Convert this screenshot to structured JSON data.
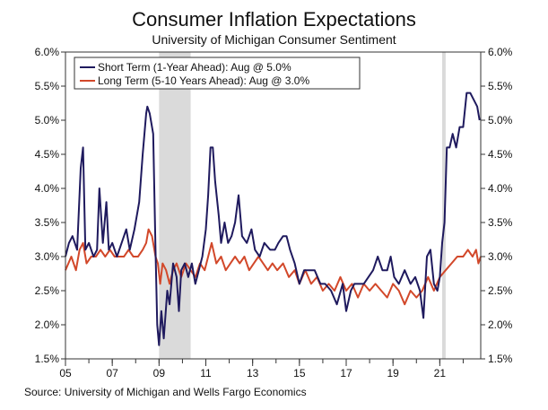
{
  "chart_data": {
    "type": "line",
    "title": "Consumer Inflation Expectations",
    "subtitle": "University of Michigan Consumer Sentiment",
    "source": "Source: University of Michigan and Wells Fargo Economics",
    "x_axis": {
      "range": [
        2005.0,
        2022.75
      ],
      "tick_values": [
        2005,
        2007,
        2009,
        2011,
        2013,
        2015,
        2017,
        2019,
        2021
      ],
      "tick_labels": [
        "05",
        "07",
        "09",
        "11",
        "13",
        "15",
        "17",
        "19",
        "21"
      ]
    },
    "y_axis": {
      "range": [
        1.5,
        6.0
      ],
      "tick_values": [
        1.5,
        2.0,
        2.5,
        3.0,
        3.5,
        4.0,
        4.5,
        5.0,
        5.5,
        6.0
      ],
      "tick_labels": [
        "1.5%",
        "2.0%",
        "2.5%",
        "3.0%",
        "3.5%",
        "4.0%",
        "4.5%",
        "5.0%",
        "5.5%",
        "6.0%"
      ],
      "mirrored_right": true
    },
    "grid": false,
    "legend_placement": "top-left",
    "recessions": [
      {
        "start": 2009.0,
        "end": 2010.35
      },
      {
        "start": 2021.1,
        "end": 2021.25
      }
    ],
    "colors": {
      "short": "#1f1a5e",
      "long": "#d2482a",
      "recession": "#dadada",
      "axis": "#333333"
    },
    "series": [
      {
        "name": "Short Term (1-Year Ahead): Aug @ 5.0%",
        "key": "short",
        "points": [
          [
            2005.0,
            3.0
          ],
          [
            2005.15,
            3.2
          ],
          [
            2005.3,
            3.3
          ],
          [
            2005.5,
            3.1
          ],
          [
            2005.65,
            4.3
          ],
          [
            2005.75,
            4.6
          ],
          [
            2005.85,
            3.1
          ],
          [
            2006.0,
            3.2
          ],
          [
            2006.2,
            3.0
          ],
          [
            2006.35,
            3.1
          ],
          [
            2006.45,
            4.0
          ],
          [
            2006.6,
            3.2
          ],
          [
            2006.75,
            3.8
          ],
          [
            2006.85,
            3.1
          ],
          [
            2007.0,
            3.2
          ],
          [
            2007.2,
            3.0
          ],
          [
            2007.4,
            3.2
          ],
          [
            2007.6,
            3.4
          ],
          [
            2007.75,
            3.1
          ],
          [
            2007.95,
            3.4
          ],
          [
            2008.15,
            3.8
          ],
          [
            2008.3,
            4.5
          ],
          [
            2008.45,
            5.1
          ],
          [
            2008.5,
            5.2
          ],
          [
            2008.6,
            5.1
          ],
          [
            2008.75,
            4.8
          ],
          [
            2008.85,
            3.1
          ],
          [
            2008.92,
            2.0
          ],
          [
            2009.0,
            1.7
          ],
          [
            2009.1,
            2.2
          ],
          [
            2009.2,
            1.8
          ],
          [
            2009.35,
            2.5
          ],
          [
            2009.45,
            2.3
          ],
          [
            2009.6,
            2.9
          ],
          [
            2009.75,
            2.7
          ],
          [
            2009.85,
            2.2
          ],
          [
            2009.95,
            2.8
          ],
          [
            2010.1,
            2.9
          ],
          [
            2010.25,
            2.7
          ],
          [
            2010.4,
            2.9
          ],
          [
            2010.55,
            2.6
          ],
          [
            2010.7,
            2.8
          ],
          [
            2010.85,
            3.0
          ],
          [
            2011.0,
            3.4
          ],
          [
            2011.1,
            3.9
          ],
          [
            2011.2,
            4.6
          ],
          [
            2011.3,
            4.6
          ],
          [
            2011.4,
            4.1
          ],
          [
            2011.55,
            3.6
          ],
          [
            2011.65,
            3.2
          ],
          [
            2011.8,
            3.5
          ],
          [
            2011.95,
            3.2
          ],
          [
            2012.1,
            3.3
          ],
          [
            2012.25,
            3.5
          ],
          [
            2012.4,
            3.9
          ],
          [
            2012.55,
            3.3
          ],
          [
            2012.75,
            3.2
          ],
          [
            2012.95,
            3.4
          ],
          [
            2013.1,
            3.1
          ],
          [
            2013.3,
            3.0
          ],
          [
            2013.5,
            3.2
          ],
          [
            2013.75,
            3.1
          ],
          [
            2013.95,
            3.1
          ],
          [
            2014.1,
            3.2
          ],
          [
            2014.3,
            3.3
          ],
          [
            2014.45,
            3.3
          ],
          [
            2014.6,
            3.1
          ],
          [
            2014.8,
            2.9
          ],
          [
            2015.0,
            2.6
          ],
          [
            2015.2,
            2.8
          ],
          [
            2015.45,
            2.8
          ],
          [
            2015.65,
            2.8
          ],
          [
            2015.9,
            2.6
          ],
          [
            2016.1,
            2.6
          ],
          [
            2016.35,
            2.5
          ],
          [
            2016.6,
            2.3
          ],
          [
            2016.85,
            2.6
          ],
          [
            2017.0,
            2.2
          ],
          [
            2017.2,
            2.5
          ],
          [
            2017.35,
            2.6
          ],
          [
            2017.55,
            2.6
          ],
          [
            2017.75,
            2.6
          ],
          [
            2017.95,
            2.7
          ],
          [
            2018.15,
            2.8
          ],
          [
            2018.35,
            3.0
          ],
          [
            2018.55,
            2.8
          ],
          [
            2018.75,
            2.8
          ],
          [
            2018.9,
            3.0
          ],
          [
            2019.05,
            2.7
          ],
          [
            2019.25,
            2.6
          ],
          [
            2019.5,
            2.8
          ],
          [
            2019.75,
            2.6
          ],
          [
            2019.95,
            2.7
          ],
          [
            2020.15,
            2.5
          ],
          [
            2020.3,
            2.1
          ],
          [
            2020.45,
            3.0
          ],
          [
            2020.6,
            3.1
          ],
          [
            2020.75,
            2.6
          ],
          [
            2020.9,
            2.5
          ],
          [
            2021.0,
            2.7
          ],
          [
            2021.1,
            3.2
          ],
          [
            2021.2,
            3.5
          ],
          [
            2021.3,
            4.6
          ],
          [
            2021.42,
            4.6
          ],
          [
            2021.55,
            4.8
          ],
          [
            2021.7,
            4.6
          ],
          [
            2021.85,
            4.9
          ],
          [
            2022.0,
            4.9
          ],
          [
            2022.15,
            5.4
          ],
          [
            2022.3,
            5.4
          ],
          [
            2022.45,
            5.3
          ],
          [
            2022.6,
            5.2
          ],
          [
            2022.7,
            5.0
          ]
        ]
      },
      {
        "name": "Long Term (5-10 Years Ahead): Aug @ 3.0%",
        "key": "long",
        "points": [
          [
            2005.0,
            2.8
          ],
          [
            2005.25,
            3.0
          ],
          [
            2005.45,
            2.8
          ],
          [
            2005.6,
            3.1
          ],
          [
            2005.75,
            3.2
          ],
          [
            2005.9,
            2.9
          ],
          [
            2006.1,
            3.0
          ],
          [
            2006.3,
            3.0
          ],
          [
            2006.5,
            3.1
          ],
          [
            2006.7,
            3.0
          ],
          [
            2006.9,
            3.1
          ],
          [
            2007.1,
            3.0
          ],
          [
            2007.3,
            3.0
          ],
          [
            2007.5,
            3.0
          ],
          [
            2007.7,
            3.1
          ],
          [
            2007.9,
            3.0
          ],
          [
            2008.1,
            3.0
          ],
          [
            2008.3,
            3.1
          ],
          [
            2008.45,
            3.2
          ],
          [
            2008.55,
            3.4
          ],
          [
            2008.7,
            3.3
          ],
          [
            2008.85,
            3.0
          ],
          [
            2008.95,
            2.9
          ],
          [
            2009.05,
            2.6
          ],
          [
            2009.15,
            2.9
          ],
          [
            2009.3,
            2.8
          ],
          [
            2009.45,
            2.6
          ],
          [
            2009.6,
            2.8
          ],
          [
            2009.75,
            2.9
          ],
          [
            2009.95,
            2.7
          ],
          [
            2010.15,
            2.9
          ],
          [
            2010.35,
            2.8
          ],
          [
            2010.55,
            2.7
          ],
          [
            2010.75,
            2.9
          ],
          [
            2010.95,
            2.8
          ],
          [
            2011.1,
            3.0
          ],
          [
            2011.25,
            3.2
          ],
          [
            2011.45,
            2.9
          ],
          [
            2011.65,
            3.0
          ],
          [
            2011.85,
            2.8
          ],
          [
            2012.05,
            2.9
          ],
          [
            2012.25,
            3.0
          ],
          [
            2012.45,
            2.9
          ],
          [
            2012.65,
            3.0
          ],
          [
            2012.85,
            2.8
          ],
          [
            2013.05,
            2.9
          ],
          [
            2013.25,
            3.0
          ],
          [
            2013.45,
            2.9
          ],
          [
            2013.65,
            2.8
          ],
          [
            2013.85,
            2.9
          ],
          [
            2014.05,
            2.8
          ],
          [
            2014.3,
            2.9
          ],
          [
            2014.55,
            2.7
          ],
          [
            2014.8,
            2.8
          ],
          [
            2015.0,
            2.6
          ],
          [
            2015.25,
            2.8
          ],
          [
            2015.5,
            2.6
          ],
          [
            2015.75,
            2.7
          ],
          [
            2016.0,
            2.5
          ],
          [
            2016.25,
            2.6
          ],
          [
            2016.5,
            2.5
          ],
          [
            2016.75,
            2.7
          ],
          [
            2017.0,
            2.5
          ],
          [
            2017.25,
            2.6
          ],
          [
            2017.5,
            2.4
          ],
          [
            2017.75,
            2.6
          ],
          [
            2018.0,
            2.5
          ],
          [
            2018.25,
            2.6
          ],
          [
            2018.5,
            2.5
          ],
          [
            2018.75,
            2.4
          ],
          [
            2019.0,
            2.6
          ],
          [
            2019.25,
            2.5
          ],
          [
            2019.5,
            2.3
          ],
          [
            2019.75,
            2.5
          ],
          [
            2020.0,
            2.4
          ],
          [
            2020.25,
            2.5
          ],
          [
            2020.5,
            2.7
          ],
          [
            2020.75,
            2.5
          ],
          [
            2021.0,
            2.7
          ],
          [
            2021.25,
            2.8
          ],
          [
            2021.5,
            2.9
          ],
          [
            2021.75,
            3.0
          ],
          [
            2022.0,
            3.0
          ],
          [
            2022.2,
            3.1
          ],
          [
            2022.4,
            3.0
          ],
          [
            2022.55,
            3.1
          ],
          [
            2022.65,
            2.9
          ],
          [
            2022.75,
            3.0
          ]
        ]
      }
    ]
  }
}
